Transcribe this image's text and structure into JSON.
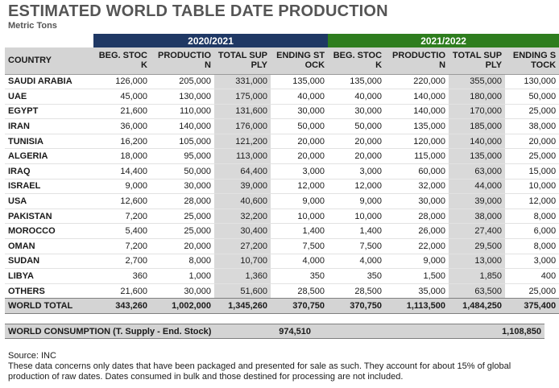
{
  "title": "ESTIMATED WORLD TABLE DATE PRODUCTION",
  "subtitle": "Metric Tons",
  "years": [
    "2020/2021",
    "2021/2022"
  ],
  "headers": {
    "country": "COUNTRY",
    "beg_stock": "BEG. STOCK",
    "production": "PRODUCTION",
    "total_supply": "TOTAL SUPPLY",
    "ending_stock": "ENDING STOCK"
  },
  "rows": [
    {
      "country": "SAUDI ARABIA",
      "y1": [
        "126,000",
        "205,000",
        "331,000",
        "135,000"
      ],
      "y2": [
        "135,000",
        "220,000",
        "355,000",
        "130,000"
      ]
    },
    {
      "country": "UAE",
      "y1": [
        "45,000",
        "130,000",
        "175,000",
        "40,000"
      ],
      "y2": [
        "40,000",
        "140,000",
        "180,000",
        "50,000"
      ]
    },
    {
      "country": "EGYPT",
      "y1": [
        "21,600",
        "110,000",
        "131,600",
        "30,000"
      ],
      "y2": [
        "30,000",
        "140,000",
        "170,000",
        "25,000"
      ]
    },
    {
      "country": "IRAN",
      "y1": [
        "36,000",
        "140,000",
        "176,000",
        "50,000"
      ],
      "y2": [
        "50,000",
        "135,000",
        "185,000",
        "38,000"
      ]
    },
    {
      "country": "TUNISIA",
      "y1": [
        "16,200",
        "105,000",
        "121,200",
        "20,000"
      ],
      "y2": [
        "20,000",
        "120,000",
        "140,000",
        "20,000"
      ]
    },
    {
      "country": "ALGERIA",
      "y1": [
        "18,000",
        "95,000",
        "113,000",
        "20,000"
      ],
      "y2": [
        "20,000",
        "115,000",
        "135,000",
        "25,000"
      ]
    },
    {
      "country": "IRAQ",
      "y1": [
        "14,400",
        "50,000",
        "64,400",
        "3,000"
      ],
      "y2": [
        "3,000",
        "60,000",
        "63,000",
        "15,000"
      ]
    },
    {
      "country": "ISRAEL",
      "y1": [
        "9,000",
        "30,000",
        "39,000",
        "12,000"
      ],
      "y2": [
        "12,000",
        "32,000",
        "44,000",
        "10,000"
      ]
    },
    {
      "country": "USA",
      "y1": [
        "12,600",
        "28,000",
        "40,600",
        "9,000"
      ],
      "y2": [
        "9,000",
        "30,000",
        "39,000",
        "12,000"
      ]
    },
    {
      "country": "PAKISTAN",
      "y1": [
        "7,200",
        "25,000",
        "32,200",
        "10,000"
      ],
      "y2": [
        "10,000",
        "28,000",
        "38,000",
        "8,000"
      ]
    },
    {
      "country": "MOROCCO",
      "y1": [
        "5,400",
        "25,000",
        "30,400",
        "1,400"
      ],
      "y2": [
        "1,400",
        "26,000",
        "27,400",
        "6,000"
      ]
    },
    {
      "country": "OMAN",
      "y1": [
        "7,200",
        "20,000",
        "27,200",
        "7,500"
      ],
      "y2": [
        "7,500",
        "22,000",
        "29,500",
        "8,000"
      ]
    },
    {
      "country": "SUDAN",
      "y1": [
        "2,700",
        "8,000",
        "10,700",
        "4,000"
      ],
      "y2": [
        "4,000",
        "9,000",
        "13,000",
        "3,000"
      ]
    },
    {
      "country": "LIBYA",
      "y1": [
        "360",
        "1,000",
        "1,360",
        "350"
      ],
      "y2": [
        "350",
        "1,500",
        "1,850",
        "400"
      ]
    },
    {
      "country": "OTHERS",
      "y1": [
        "21,600",
        "30,000",
        "51,600",
        "28,500"
      ],
      "y2": [
        "28,500",
        "35,000",
        "63,500",
        "25,000"
      ]
    }
  ],
  "total": {
    "country": "WORLD TOTAL",
    "y1": [
      "343,260",
      "1,002,000",
      "1,345,260",
      "370,750"
    ],
    "y2": [
      "370,750",
      "1,113,500",
      "1,484,250",
      "375,400"
    ]
  },
  "consumption": {
    "label": "WORLD CONSUMPTION (T. Supply - End. Stock)",
    "y1": "974,510",
    "y2": "1,108,850"
  },
  "source": "Source: INC",
  "note": "These data concerns only dates that have been packaged and presented for sale as such. They account for about 15% of global production of raw dates. Dates consumed in bulk and those destined for processing are not included.",
  "colors": {
    "year1_header": "#1f3864",
    "year2_header": "#2e7d1e",
    "shade": "#d9d9d9"
  }
}
